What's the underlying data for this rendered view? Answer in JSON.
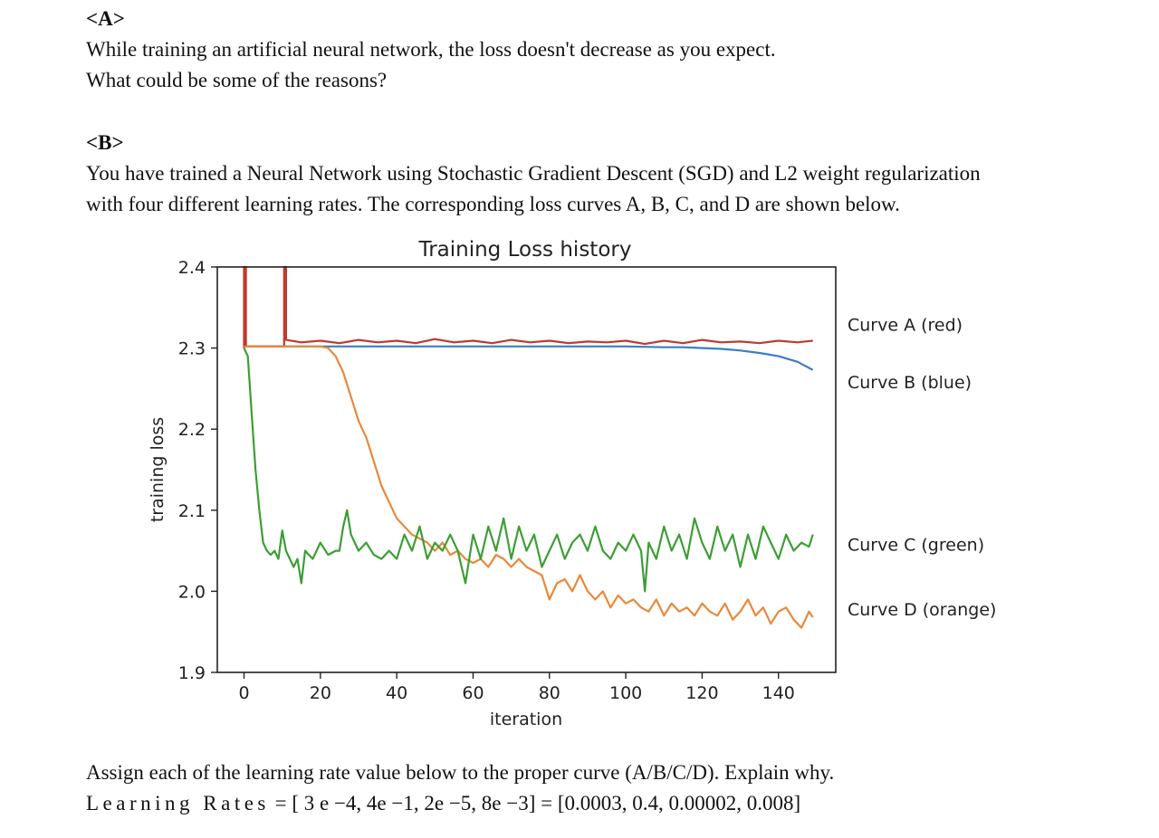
{
  "section_a": {
    "heading": "<A>",
    "line1": "While training an artificial neural network, the loss doesn't decrease as you expect.",
    "line2": "What could be some of the reasons?"
  },
  "section_b": {
    "heading": "<B>",
    "line1": "You have trained a Neural Network using Stochastic Gradient Descent (SGD) and L2 weight regularization",
    "line2": "with four different learning rates. The corresponding loss curves A, B, C, and D are shown below."
  },
  "chart_data": {
    "type": "line",
    "title": "Training Loss history",
    "xlabel": "iteration",
    "ylabel": "training loss",
    "xlim": [
      -7,
      155
    ],
    "ylim": [
      1.9,
      2.4
    ],
    "xticks": [
      0,
      20,
      40,
      60,
      80,
      100,
      120,
      140
    ],
    "yticks": [
      1.9,
      2.0,
      2.1,
      2.2,
      2.3,
      2.4
    ],
    "xtick_labels": [
      "0",
      "20",
      "40",
      "60",
      "80",
      "100",
      "120",
      "140"
    ],
    "ytick_labels": [
      "1.9",
      "2.0",
      "2.1",
      "2.2",
      "2.3",
      "2.4"
    ],
    "grid": false,
    "legend": "right",
    "series": [
      {
        "name": "Curve A (red)",
        "color": "#c0392b",
        "x": [
          0,
          0,
          0.5,
          0.5,
          10.5,
          10.5,
          11,
          11,
          15,
          20,
          25,
          30,
          35,
          40,
          45,
          50,
          55,
          60,
          65,
          70,
          75,
          80,
          85,
          90,
          95,
          100,
          105,
          110,
          115,
          120,
          125,
          130,
          135,
          140,
          145,
          149
        ],
        "y": [
          2.3,
          2.4,
          2.4,
          2.302,
          2.302,
          2.4,
          2.4,
          2.31,
          2.307,
          2.309,
          2.306,
          2.31,
          2.307,
          2.309,
          2.306,
          2.311,
          2.307,
          2.309,
          2.306,
          2.31,
          2.307,
          2.309,
          2.306,
          2.308,
          2.307,
          2.309,
          2.305,
          2.309,
          2.306,
          2.31,
          2.307,
          2.308,
          2.306,
          2.309,
          2.307,
          2.309
        ]
      },
      {
        "name": "Curve B (blue)",
        "color": "#3b7dc4",
        "x": [
          0,
          10,
          20,
          30,
          40,
          50,
          60,
          70,
          80,
          90,
          100,
          110,
          115,
          120,
          125,
          130,
          135,
          140,
          145,
          149
        ],
        "y": [
          2.302,
          2.302,
          2.302,
          2.302,
          2.302,
          2.302,
          2.302,
          2.302,
          2.302,
          2.302,
          2.302,
          2.301,
          2.301,
          2.3,
          2.299,
          2.297,
          2.294,
          2.29,
          2.283,
          2.273
        ]
      },
      {
        "name": "Curve C (green)",
        "color": "#3d9e34",
        "x": [
          0,
          1,
          2,
          3,
          4,
          5,
          6,
          7,
          8,
          9,
          10,
          11,
          12,
          13,
          14,
          15,
          16,
          18,
          20,
          22,
          24,
          25,
          26,
          27,
          28,
          30,
          32,
          34,
          36,
          38,
          40,
          42,
          44,
          46,
          48,
          50,
          52,
          54,
          56,
          58,
          60,
          62,
          64,
          66,
          68,
          70,
          72,
          74,
          76,
          78,
          80,
          82,
          84,
          86,
          88,
          90,
          92,
          94,
          96,
          98,
          100,
          102,
          104,
          105,
          106,
          108,
          110,
          112,
          114,
          116,
          118,
          120,
          122,
          124,
          126,
          128,
          130,
          132,
          134,
          136,
          138,
          140,
          142,
          144,
          146,
          148,
          149
        ],
        "y": [
          2.3,
          2.29,
          2.22,
          2.15,
          2.1,
          2.06,
          2.05,
          2.045,
          2.05,
          2.04,
          2.075,
          2.05,
          2.04,
          2.03,
          2.04,
          2.01,
          2.05,
          2.04,
          2.06,
          2.045,
          2.05,
          2.05,
          2.08,
          2.1,
          2.07,
          2.05,
          2.06,
          2.045,
          2.04,
          2.05,
          2.04,
          2.07,
          2.05,
          2.08,
          2.04,
          2.06,
          2.05,
          2.07,
          2.05,
          2.01,
          2.07,
          2.04,
          2.08,
          2.05,
          2.09,
          2.04,
          2.08,
          2.05,
          2.07,
          2.03,
          2.05,
          2.07,
          2.04,
          2.06,
          2.07,
          2.05,
          2.08,
          2.05,
          2.04,
          2.06,
          2.05,
          2.07,
          2.05,
          2.0,
          2.06,
          2.04,
          2.08,
          2.05,
          2.07,
          2.04,
          2.09,
          2.06,
          2.04,
          2.08,
          2.05,
          2.07,
          2.03,
          2.07,
          2.04,
          2.08,
          2.06,
          2.04,
          2.07,
          2.05,
          2.06,
          2.055,
          2.07
        ]
      },
      {
        "name": "Curve D (orange)",
        "color": "#e8893a",
        "x": [
          0,
          10,
          20,
          22,
          24,
          26,
          28,
          30,
          32,
          34,
          36,
          38,
          40,
          42,
          44,
          46,
          48,
          50,
          52,
          54,
          56,
          58,
          60,
          62,
          64,
          66,
          68,
          70,
          72,
          74,
          76,
          78,
          80,
          82,
          84,
          86,
          88,
          90,
          92,
          94,
          96,
          98,
          100,
          102,
          104,
          106,
          108,
          110,
          112,
          114,
          116,
          118,
          120,
          122,
          124,
          126,
          128,
          130,
          132,
          134,
          136,
          138,
          140,
          142,
          144,
          146,
          148,
          149
        ],
        "y": [
          2.302,
          2.302,
          2.302,
          2.3,
          2.29,
          2.27,
          2.24,
          2.21,
          2.19,
          2.16,
          2.13,
          2.11,
          2.09,
          2.08,
          2.07,
          2.065,
          2.06,
          2.05,
          2.06,
          2.045,
          2.05,
          2.04,
          2.035,
          2.04,
          2.03,
          2.045,
          2.04,
          2.03,
          2.04,
          2.03,
          2.025,
          2.02,
          1.99,
          2.01,
          2.015,
          2.0,
          2.02,
          2.0,
          1.99,
          2.0,
          1.98,
          1.995,
          1.985,
          1.99,
          1.98,
          1.975,
          1.99,
          1.97,
          1.985,
          1.975,
          1.98,
          1.97,
          1.985,
          1.975,
          1.97,
          1.985,
          1.965,
          1.975,
          1.99,
          1.97,
          1.98,
          1.96,
          1.975,
          1.98,
          1.965,
          1.955,
          1.975,
          1.968
        ]
      }
    ]
  },
  "question": {
    "line1": "Assign each of the learning rate value below to the proper curve (A/B/C/D). Explain why.",
    "lr_label": "Learning Rates",
    "lr_values": " = [ 3 e −4, 4e −1, 2e −5, 8e −3] = [0.0003, 0.4, 0.00002, 0.008]"
  }
}
